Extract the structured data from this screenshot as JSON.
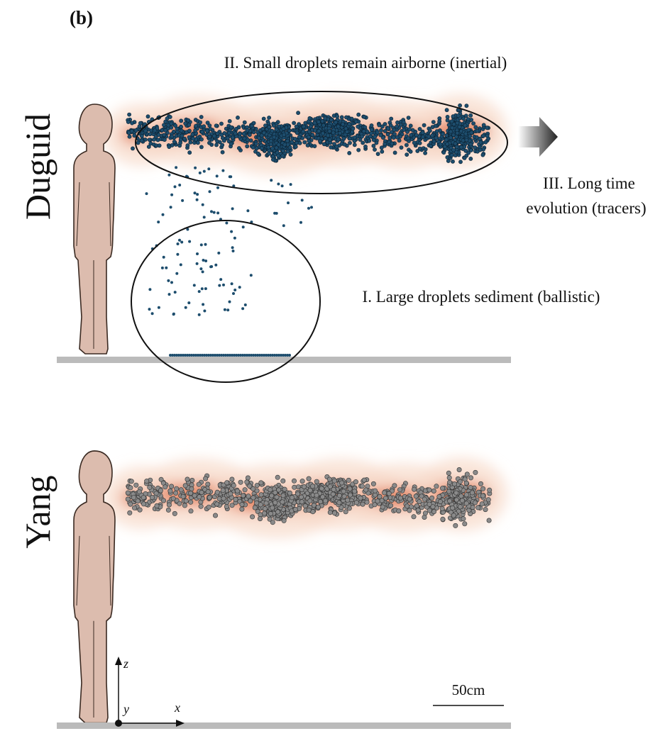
{
  "panel_label": "(b)",
  "rows": [
    {
      "label": "Duguid"
    },
    {
      "label": "Yang"
    }
  ],
  "annotations": {
    "small_droplets": "II. Small droplets remain airborne (inertial)",
    "long_time_line1": "III. Long time",
    "long_time_line2": "evolution (tracers)",
    "large_droplets": "I. Large droplets sediment (ballistic)"
  },
  "axes": {
    "z": "z",
    "y": "y",
    "x": "x"
  },
  "scale_bar": "50cm"
}
